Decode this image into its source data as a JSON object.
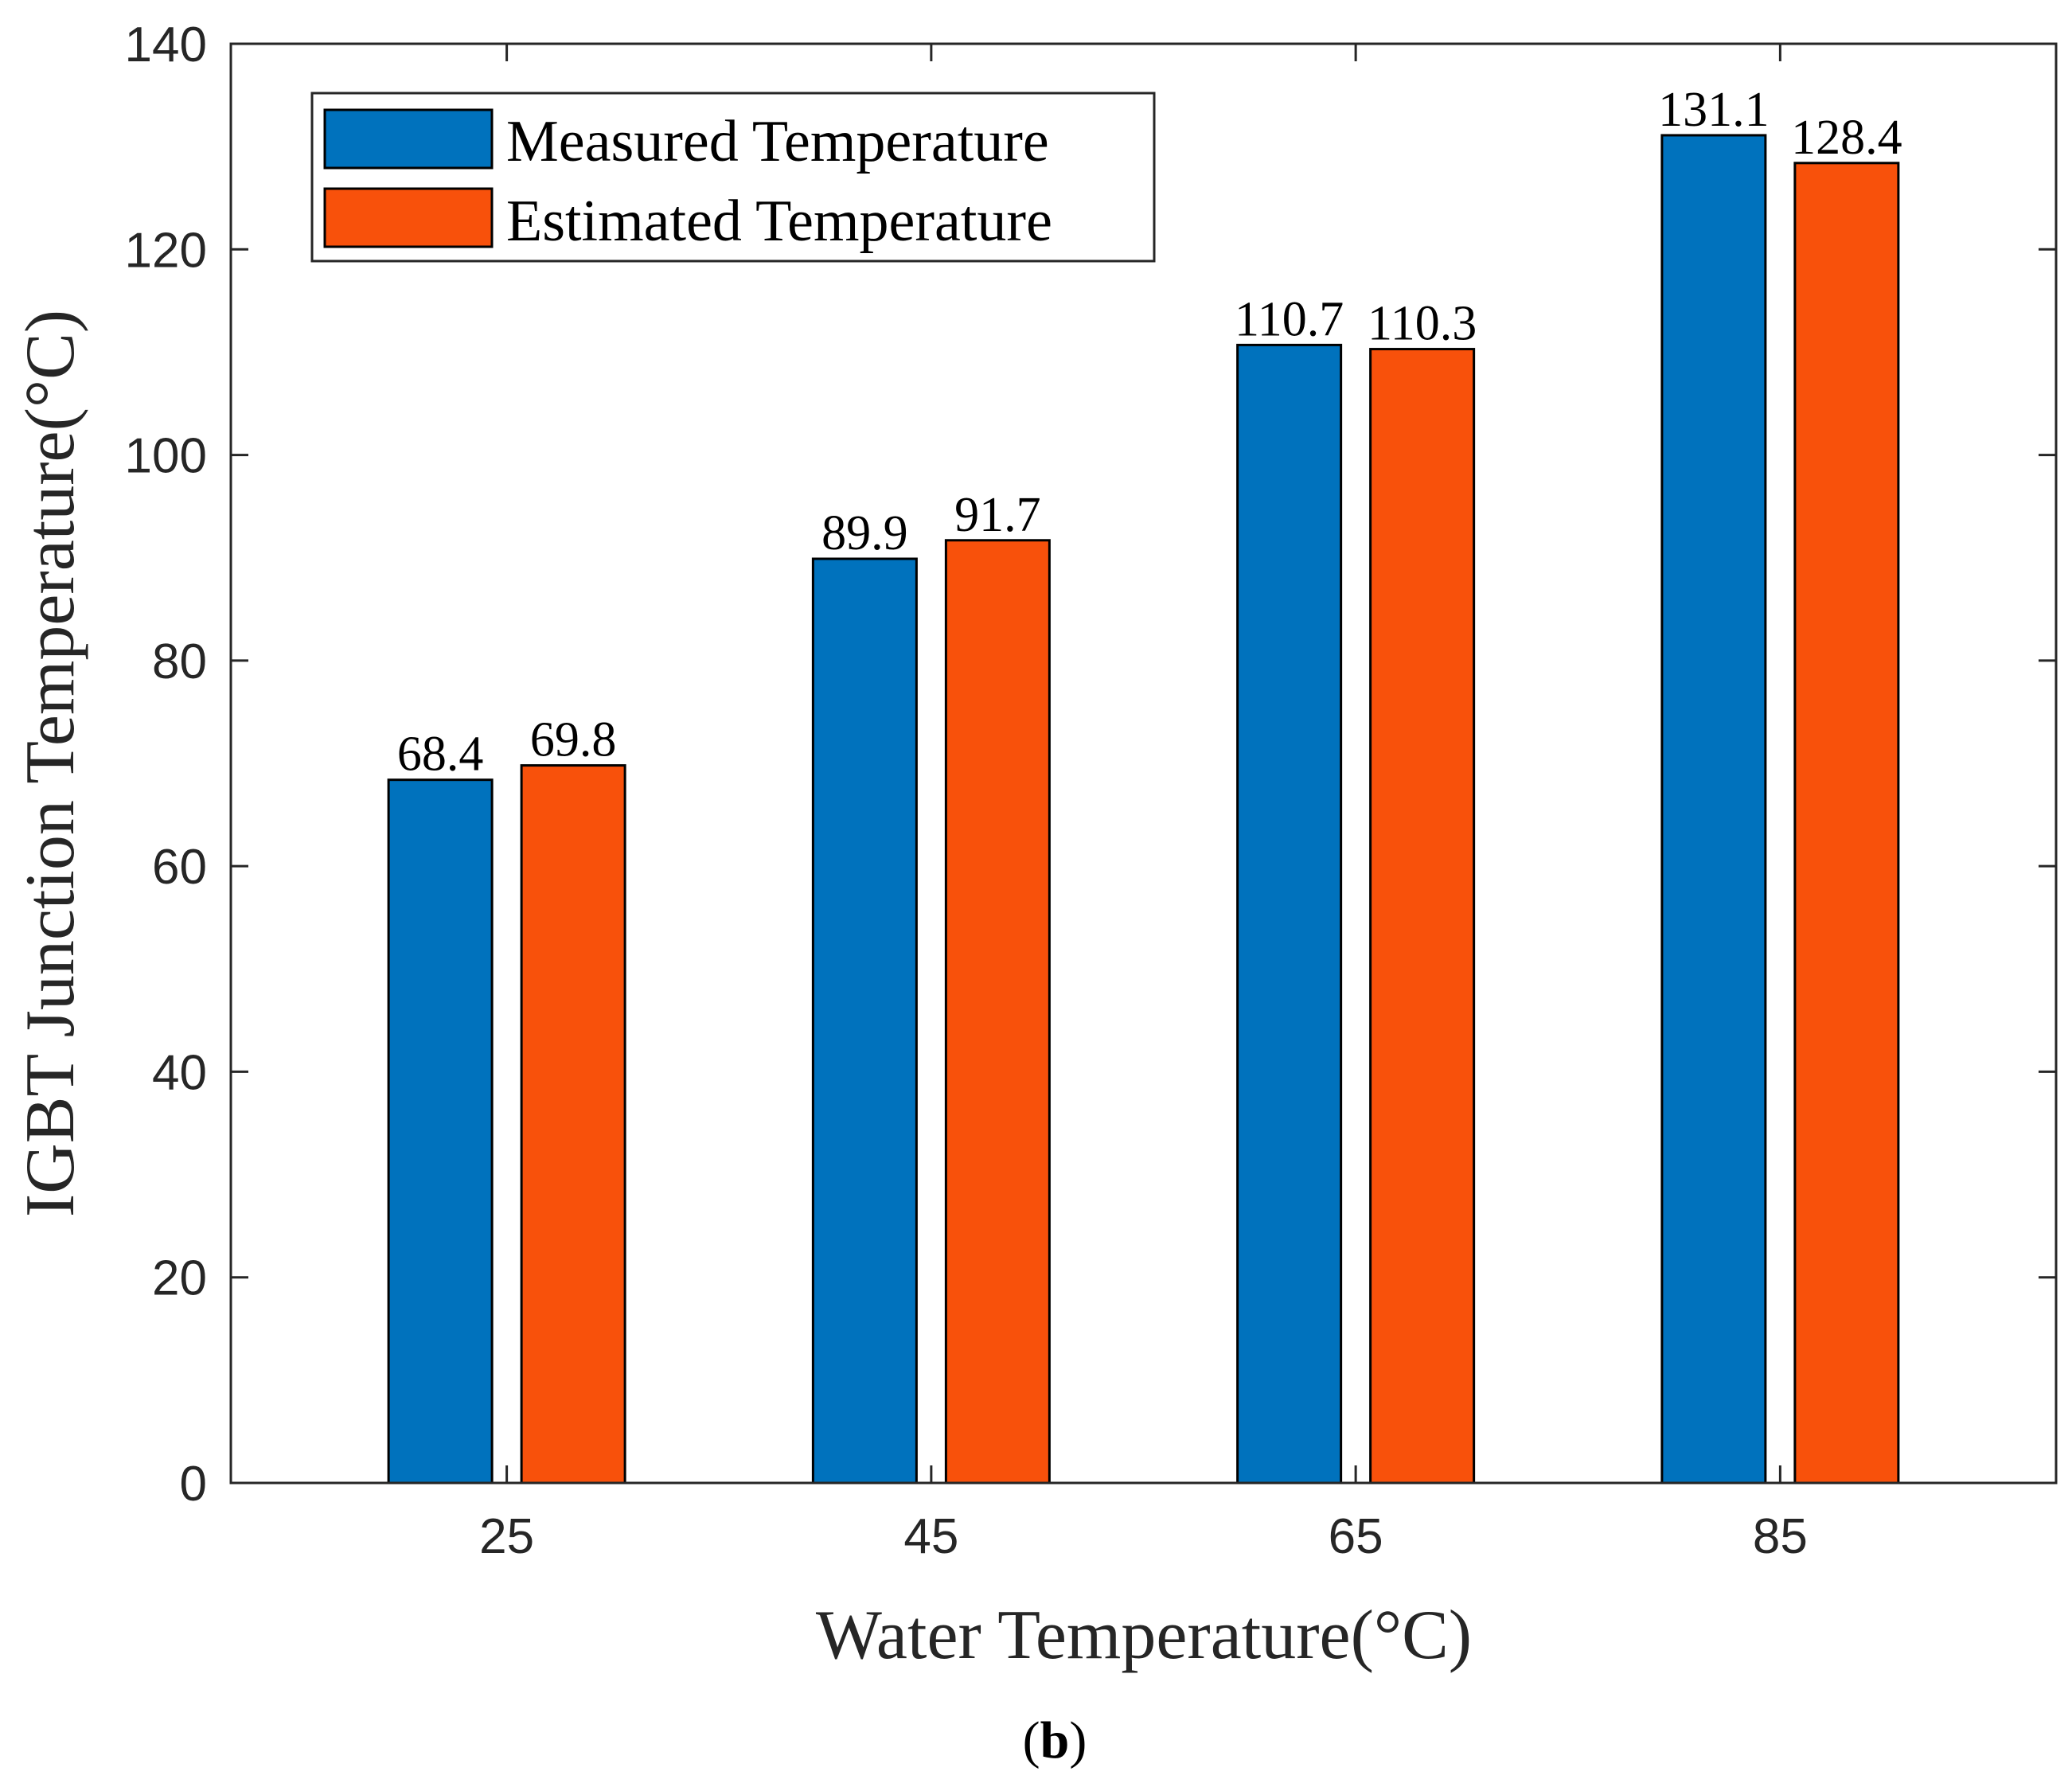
{
  "chart_data": {
    "type": "bar",
    "categories": [
      "25",
      "45",
      "65",
      "85"
    ],
    "series": [
      {
        "name": "Measured Temperature",
        "color": "#0072BD",
        "values": [
          68.4,
          89.9,
          110.7,
          131.1
        ]
      },
      {
        "name": "Estimated Temperature",
        "color": "#F8510B",
        "values": [
          69.8,
          91.7,
          110.3,
          128.4
        ]
      }
    ],
    "data_labels": [
      [
        "68.4",
        "89.9",
        "110.7",
        "131.1"
      ],
      [
        "69.8",
        "91.7",
        "110.3",
        "128.4"
      ]
    ],
    "xlabel": "Water Temperature(°C)",
    "ylabel": "IGBT Junction Temperature(°C)",
    "ylim": [
      0,
      140
    ],
    "yticks": [
      0,
      20,
      40,
      60,
      80,
      100,
      120,
      140
    ],
    "grid": false,
    "legend_position": "top-left"
  },
  "panel_label": {
    "open": "(",
    "letter": "b",
    "close": ")"
  }
}
